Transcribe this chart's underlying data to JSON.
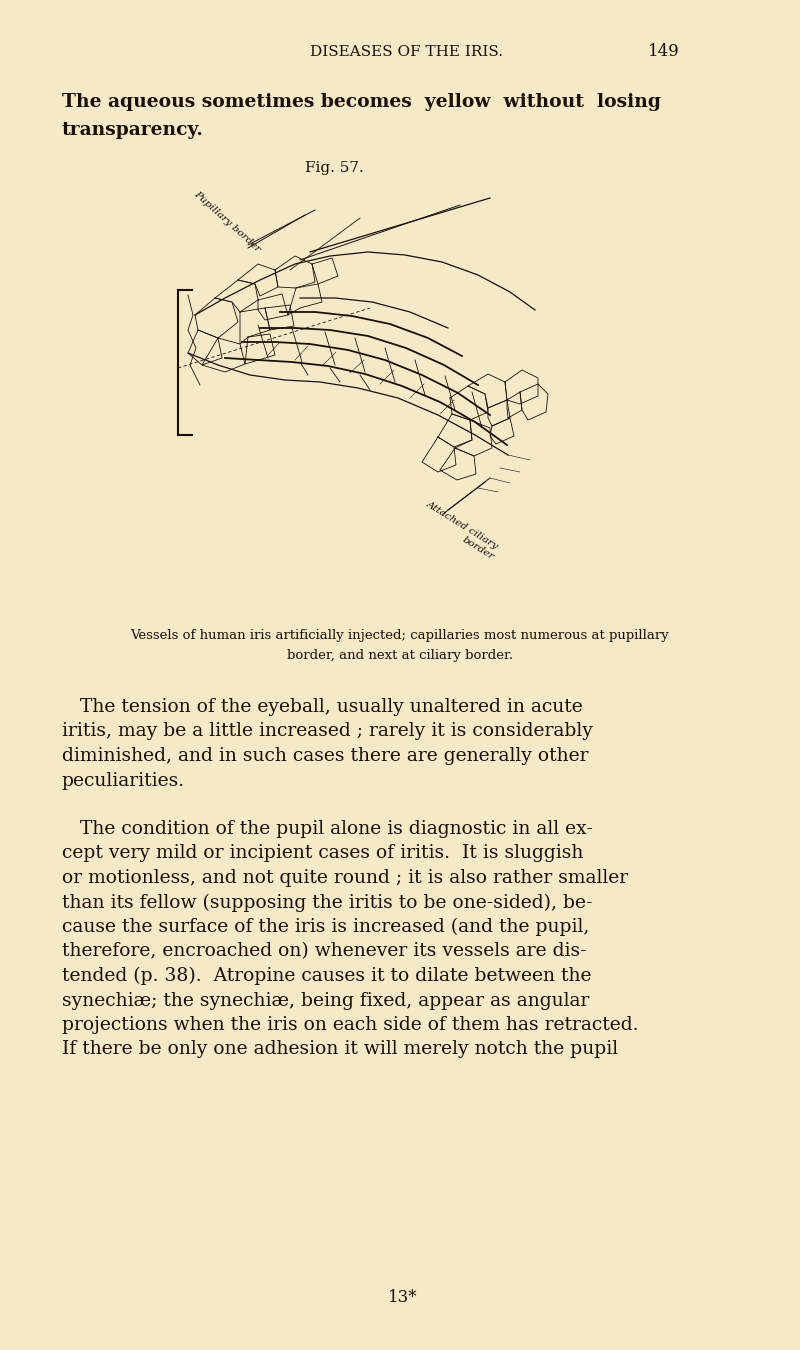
{
  "background_color": "#f5e9c8",
  "header_text": "DISEASES OF THE IRIS.",
  "page_number": "149",
  "intro_text_line1": "The aqueous sometimes becomes  yellow  without  losing",
  "intro_text_line2": "transparency.",
  "fig_label": "Fig. 57.",
  "caption_line1": "Vessels of human iris artificially injected; capillaries most numerous at pupillary",
  "caption_line2": "border, and next at ciliary border.",
  "footer_text": "13*",
  "text_color": "#1a1008"
}
